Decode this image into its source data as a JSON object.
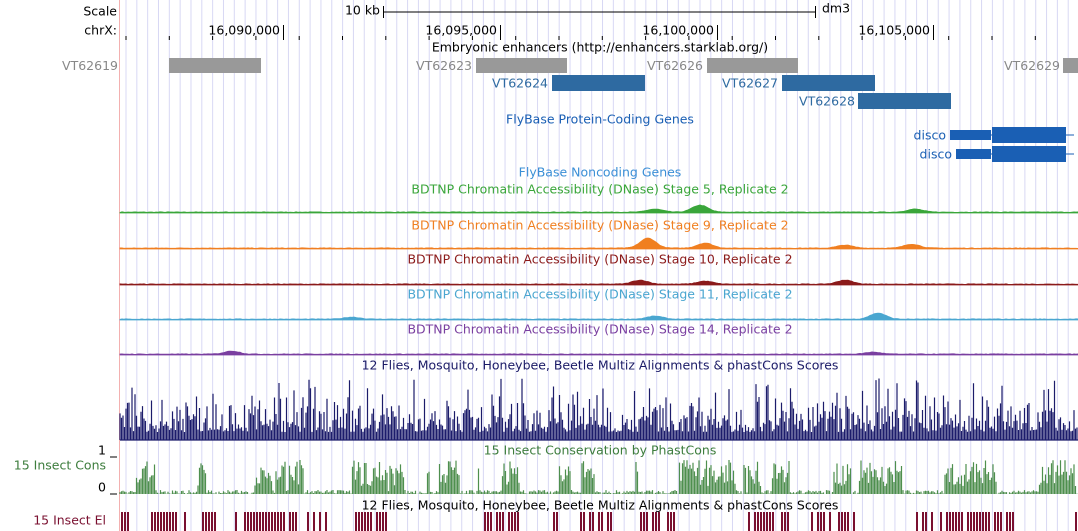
{
  "scale_label": "Scale",
  "scale_bar_label": "10 kb",
  "assembly": "dm3",
  "chrom_label": "chrX:",
  "positions": [
    {
      "value": 16090000,
      "label": "16,090,000"
    },
    {
      "value": 16095000,
      "label": "16,095,000"
    },
    {
      "value": 16100000,
      "label": "16,100,000"
    },
    {
      "value": 16105000,
      "label": "16,105,000"
    }
  ],
  "enhancer_track": {
    "title": "Embryonic enhancers (http://enhancers.starklab.org/)",
    "items": [
      "VT62619",
      "VT62623",
      "VT62626",
      "VT62629",
      "VT62624",
      "VT62627",
      "VT62628"
    ]
  },
  "coding_genes": {
    "title": "FlyBase Protein-Coding Genes",
    "genes": [
      "disco",
      "disco"
    ]
  },
  "noncoding_genes": {
    "title": "FlyBase Noncoding Genes"
  },
  "dnase_tracks": [
    "BDTNP Chromatin Accessibility (DNase) Stage 5, Replicate 2",
    "BDTNP Chromatin Accessibility (DNase) Stage 9, Replicate 2",
    "BDTNP Chromatin Accessibility (DNase) Stage 10, Replicate 2",
    "BDTNP Chromatin Accessibility (DNase) Stage 11, Replicate 2",
    "BDTNP Chromatin Accessibility (DNase) Stage 14, Replicate 2"
  ],
  "multiz_title": "12 Flies, Mosquito, Honeybee, Beetle Multiz Alignments & phastCons Scores",
  "cons_track": {
    "label": "15 Insect Cons",
    "title": "15 Insect Conservation by PhastCons",
    "max": "1",
    "min": "0"
  },
  "elements_track": {
    "label": "15 Insect El",
    "title": "12 Flies, Mosquito, Honeybee, Beetle Multiz Alignments & phastCons Scores"
  }
}
